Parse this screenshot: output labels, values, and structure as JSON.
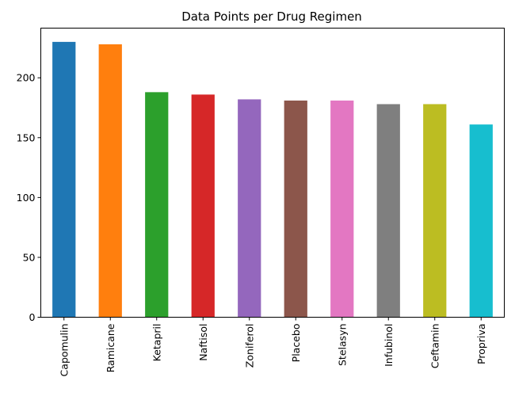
{
  "chart_data": {
    "type": "bar",
    "title": "Data Points per Drug Regimen",
    "xlabel": "",
    "ylabel": "",
    "categories": [
      "Capomulin",
      "Ramicane",
      "Ketapril",
      "Naftisol",
      "Zoniferol",
      "Placebo",
      "Stelasyn",
      "Infubinol",
      "Ceftamin",
      "Propriva"
    ],
    "values": [
      230,
      228,
      188,
      186,
      182,
      181,
      181,
      178,
      178,
      161
    ],
    "colors": [
      "#1f77b4",
      "#ff7f0e",
      "#2ca02c",
      "#d62728",
      "#9467bd",
      "#8c564b",
      "#e377c2",
      "#7f7f7f",
      "#bcbd22",
      "#17becf"
    ],
    "ylim": [
      0,
      241.5
    ],
    "yticks": [
      0,
      50,
      100,
      150,
      200
    ],
    "ytick_labels": [
      "0",
      "50",
      "100",
      "150",
      "200"
    ],
    "grid": false,
    "legend": "none"
  }
}
